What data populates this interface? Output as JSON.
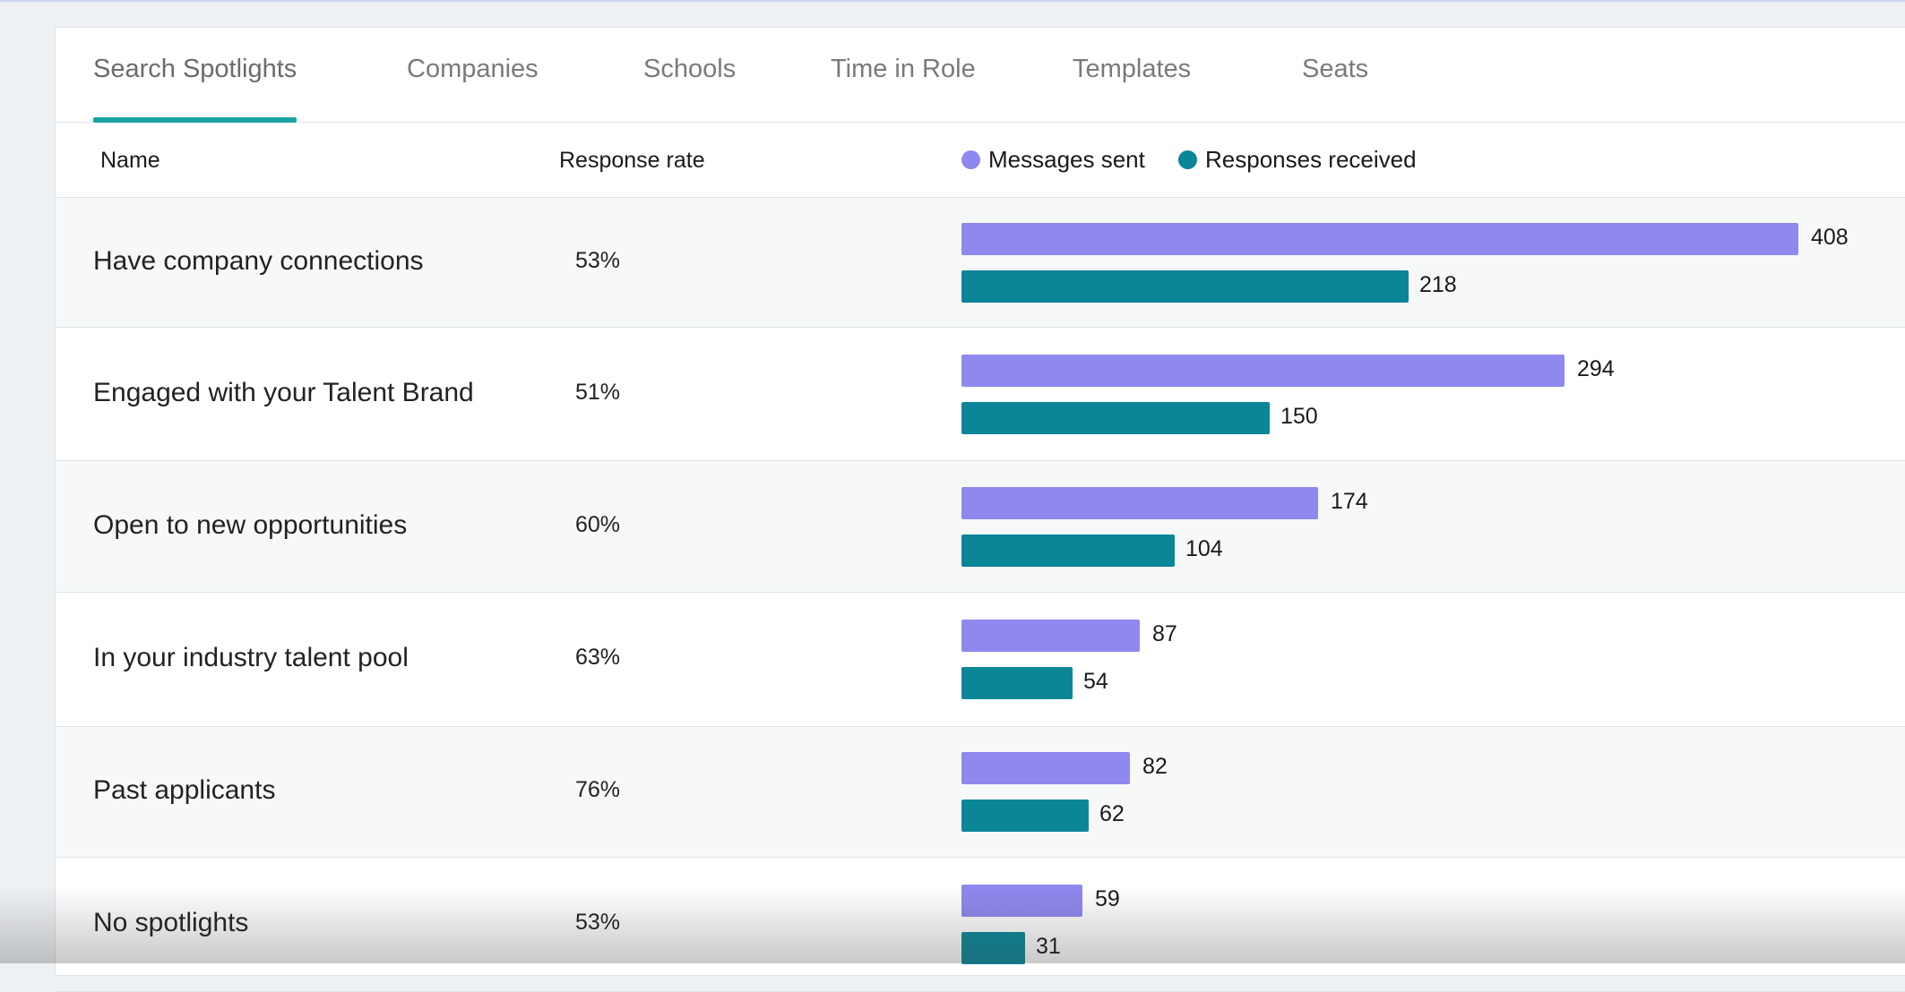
{
  "tabs": [
    {
      "label": "Search Spotlights",
      "active": true
    },
    {
      "label": "Companies",
      "active": false
    },
    {
      "label": "Schools",
      "active": false
    },
    {
      "label": "Time in Role",
      "active": false
    },
    {
      "label": "Templates",
      "active": false
    },
    {
      "label": "Seats",
      "active": false
    }
  ],
  "table": {
    "columns": {
      "name": "Name",
      "rate": "Response rate"
    },
    "legend": [
      {
        "label": "Messages sent",
        "color": "#8f88ef"
      },
      {
        "label": "Responses received",
        "color": "#0b8698"
      }
    ]
  },
  "colors": {
    "accent": "#1aa3a3",
    "messages_sent": "#8f88ef",
    "responses_received": "#0b8698"
  },
  "chart_data": {
    "type": "bar",
    "categories": [
      "Have company connections",
      "Engaged with your Talent Brand",
      "Open to new opportunities",
      "In your industry talent pool",
      "Past applicants",
      "No spotlights"
    ],
    "response_rates": [
      "53%",
      "51%",
      "60%",
      "63%",
      "76%",
      "53%"
    ],
    "series": [
      {
        "name": "Messages sent",
        "values": [
          408,
          294,
          174,
          87,
          82,
          59
        ]
      },
      {
        "name": "Responses received",
        "values": [
          218,
          150,
          104,
          54,
          62,
          31
        ]
      }
    ]
  }
}
